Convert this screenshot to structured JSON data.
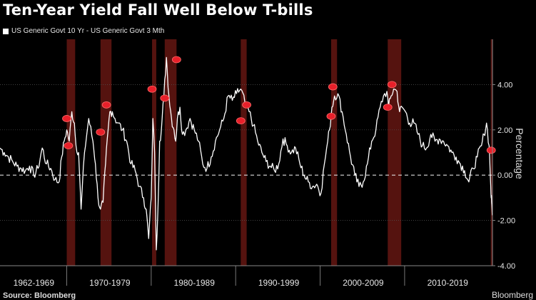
{
  "chart_data": {
    "type": "line",
    "title": "Ten-Year Yield Fall Well Below T-bills",
    "legend": "US Generic Govt 10 Yr - US Generic Govt 3 Mth",
    "ylabel": "Percentage",
    "ylim": [
      -4,
      6
    ],
    "yticks": [
      4,
      2,
      0,
      -2,
      -4
    ],
    "ytick_labels": [
      "4.00",
      "2.00",
      "0.00",
      "-2.00",
      "-4.00"
    ],
    "xlim": [
      1962.0,
      2020.3
    ],
    "decade_labels": [
      {
        "label": "1962-1969",
        "x": 1966.0
      },
      {
        "label": "1970-1979",
        "x": 1975.0
      },
      {
        "label": "1980-1989",
        "x": 1985.0
      },
      {
        "label": "1990-1999",
        "x": 1995.0
      },
      {
        "label": "2000-2009",
        "x": 2005.0
      },
      {
        "label": "2010-2019",
        "x": 2015.0
      }
    ],
    "decade_dividers": [
      1969.9,
      1979.9,
      1989.9,
      1999.9,
      2009.9
    ],
    "recessions": [
      [
        1969.9,
        1970.9
      ],
      [
        1973.9,
        1975.2
      ],
      [
        1980.0,
        1980.5
      ],
      [
        1981.5,
        1982.9
      ],
      [
        1990.5,
        1991.2
      ],
      [
        2001.2,
        2001.9
      ],
      [
        2007.9,
        2009.5
      ],
      [
        2020.1,
        2020.3
      ]
    ],
    "zero_line": true,
    "series": [
      {
        "x": [
          1962.0,
          1962.5,
          1963.0,
          1963.5,
          1964.0,
          1964.5,
          1965.0,
          1965.5,
          1966.0,
          1966.5,
          1967.0,
          1967.5,
          1968.0,
          1968.5,
          1969.0,
          1969.3,
          1969.6,
          1969.9,
          1970.2,
          1970.5,
          1970.8,
          1971.0,
          1971.3,
          1971.6,
          1972.0,
          1972.5,
          1973.0,
          1973.3,
          1973.6,
          1973.9,
          1974.2,
          1974.5,
          1974.8,
          1975.0,
          1975.3,
          1975.6,
          1976.0,
          1976.5,
          1977.0,
          1977.5,
          1978.0,
          1978.5,
          1979.0,
          1979.3,
          1979.6,
          1979.9,
          1980.1,
          1980.3,
          1980.5,
          1980.7,
          1980.9,
          1981.1,
          1981.4,
          1981.7,
          1982.0,
          1982.3,
          1982.6,
          1982.8,
          1983.0,
          1983.3,
          1983.6,
          1984.0,
          1984.5,
          1985.0,
          1985.5,
          1986.0,
          1986.5,
          1987.0,
          1987.5,
          1988.0,
          1988.5,
          1989.0,
          1989.5,
          1990.0,
          1990.5,
          1991.0,
          1991.5,
          1992.0,
          1992.5,
          1993.0,
          1993.5,
          1994.0,
          1994.5,
          1995.0,
          1995.5,
          1996.0,
          1996.5,
          1997.0,
          1997.5,
          1998.0,
          1998.5,
          1999.0,
          1999.5,
          2000.0,
          2000.4,
          2000.8,
          2001.0,
          2001.3,
          2001.6,
          2002.0,
          2002.5,
          2003.0,
          2003.5,
          2004.0,
          2004.5,
          2005.0,
          2005.5,
          2006.0,
          2006.5,
          2007.0,
          2007.4,
          2007.8,
          2008.0,
          2008.3,
          2008.6,
          2009.0,
          2009.3,
          2009.6,
          2010.0,
          2010.5,
          2011.0,
          2011.5,
          2012.0,
          2012.5,
          2013.0,
          2013.5,
          2014.0,
          2014.5,
          2015.0,
          2015.5,
          2016.0,
          2016.5,
          2017.0,
          2017.5,
          2018.0,
          2018.5,
          2019.0,
          2019.3,
          2019.6,
          2019.9,
          2020.0,
          2020.1,
          2020.15,
          2020.2,
          2020.25,
          2020.3
        ],
        "values": [
          1.2,
          1.0,
          0.8,
          0.6,
          0.4,
          0.3,
          0.2,
          0.4,
          0.0,
          0.3,
          1.2,
          0.5,
          0.3,
          -0.2,
          -0.3,
          0.8,
          1.5,
          2.0,
          1.5,
          2.8,
          2.3,
          1.3,
          1.0,
          -1.5,
          1.0,
          2.5,
          1.5,
          0.5,
          -1.0,
          -1.5,
          -1.2,
          0.5,
          2.0,
          2.8,
          2.8,
          2.5,
          2.3,
          2.0,
          1.5,
          0.5,
          0.2,
          -0.5,
          -1.0,
          -1.5,
          -2.8,
          -1.0,
          2.5,
          1.0,
          -3.3,
          -1.5,
          1.5,
          2.0,
          3.5,
          5.2,
          3.5,
          2.5,
          2.0,
          1.5,
          2.5,
          3.0,
          1.8,
          2.0,
          2.5,
          2.0,
          1.5,
          0.5,
          0.3,
          0.8,
          1.5,
          2.0,
          2.5,
          3.5,
          3.3,
          3.6,
          3.8,
          3.2,
          2.8,
          2.2,
          1.5,
          1.0,
          0.6,
          0.4,
          0.2,
          0.5,
          1.6,
          1.3,
          1.0,
          1.2,
          0.5,
          0.0,
          -0.3,
          -0.5,
          -0.4,
          -0.8,
          0.5,
          1.5,
          2.0,
          3.0,
          3.5,
          3.6,
          2.8,
          1.8,
          0.8,
          0.0,
          -0.5,
          -0.3,
          0.5,
          1.5,
          2.0,
          3.0,
          3.5,
          3.7,
          3.0,
          3.5,
          3.8,
          3.7,
          2.8,
          3.0,
          2.8,
          2.3,
          2.3,
          1.8,
          1.3,
          1.2,
          1.8,
          1.5,
          1.6,
          1.5,
          1.3,
          1.0,
          0.8,
          0.5,
          0.2,
          -0.3,
          0.3,
          0.8,
          1.3,
          1.8,
          2.3,
          1.3,
          0.5,
          -0.5,
          -1.0,
          -1.2,
          -1.5,
          -1.7
        ]
      }
    ],
    "markers": [
      {
        "x": 1969.9,
        "y": 2.5
      },
      {
        "x": 1970.1,
        "y": 1.3
      },
      {
        "x": 1973.9,
        "y": 1.9
      },
      {
        "x": 1974.6,
        "y": 3.1
      },
      {
        "x": 1980.0,
        "y": 3.8
      },
      {
        "x": 1981.5,
        "y": 3.4
      },
      {
        "x": 1982.9,
        "y": 5.1
      },
      {
        "x": 1990.5,
        "y": 2.4
      },
      {
        "x": 1991.2,
        "y": 3.1
      },
      {
        "x": 2001.2,
        "y": 2.6
      },
      {
        "x": 2001.4,
        "y": 3.9
      },
      {
        "x": 2007.9,
        "y": 3.0
      },
      {
        "x": 2008.4,
        "y": 4.0
      },
      {
        "x": 2020.15,
        "y": 1.1
      }
    ]
  },
  "footer": {
    "source": "Source: Bloomberg",
    "brand": "Bloomberg"
  }
}
